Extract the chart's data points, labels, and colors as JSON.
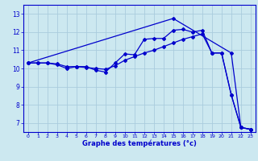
{
  "xlabel": "Graphe des températures (°c)",
  "background_color": "#cce8f0",
  "grid_color": "#aaccdd",
  "line_color": "#0000cc",
  "xlim": [
    -0.5,
    23.5
  ],
  "ylim": [
    6.5,
    13.5
  ],
  "xticks": [
    0,
    1,
    2,
    3,
    4,
    5,
    6,
    7,
    8,
    9,
    10,
    11,
    12,
    13,
    14,
    15,
    16,
    17,
    18,
    19,
    20,
    21,
    22,
    23
  ],
  "yticks": [
    7,
    8,
    9,
    10,
    11,
    12,
    13
  ],
  "series1_x": [
    0,
    1,
    2,
    3,
    4,
    5,
    6,
    7,
    8,
    9,
    10,
    11,
    12,
    13,
    14,
    15,
    16,
    17,
    18,
    19,
    20,
    21,
    22,
    23
  ],
  "series1_y": [
    10.3,
    10.3,
    10.3,
    10.2,
    10.0,
    10.1,
    10.1,
    9.9,
    9.8,
    10.3,
    10.8,
    10.75,
    11.6,
    11.65,
    11.65,
    12.1,
    12.15,
    12.0,
    12.1,
    10.85,
    10.85,
    8.55,
    6.75,
    6.65
  ],
  "series2_x": [
    0,
    1,
    2,
    3,
    4,
    5,
    6,
    7,
    8,
    9,
    10,
    11,
    12,
    13,
    14,
    15,
    16,
    17,
    18,
    19,
    20,
    21,
    22,
    23
  ],
  "series2_y": [
    10.3,
    10.3,
    10.3,
    10.25,
    10.1,
    10.1,
    10.05,
    10.0,
    9.95,
    10.15,
    10.45,
    10.65,
    10.85,
    11.0,
    11.2,
    11.4,
    11.6,
    11.75,
    11.9,
    10.85,
    10.85,
    8.55,
    6.75,
    6.65
  ],
  "series3_x": [
    0,
    15,
    21,
    22,
    23
  ],
  "series3_y": [
    10.3,
    12.75,
    10.85,
    6.75,
    6.65
  ]
}
